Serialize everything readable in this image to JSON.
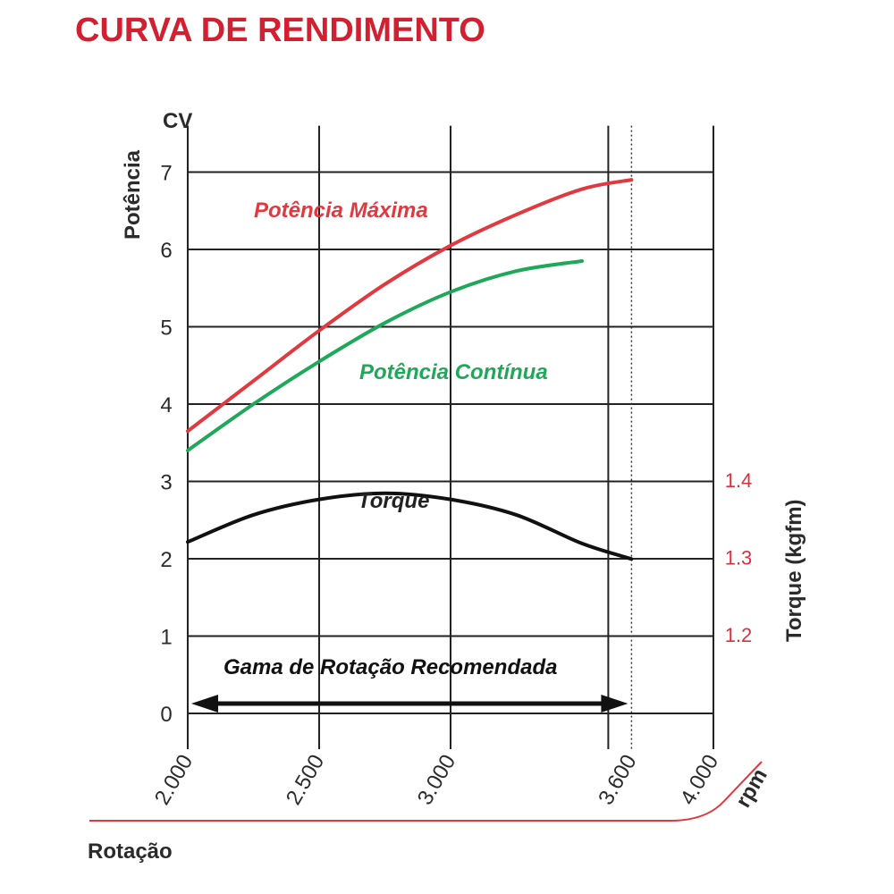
{
  "header": {
    "title": "CURVA DE RENDIMENTO"
  },
  "colors": {
    "title": "#d22030",
    "max_power": "#e0393f",
    "cont_power": "#1fa85a",
    "torque": "#111111",
    "torque_axis": "#d9303c",
    "grid": "#222222",
    "baseline": "#e0393f"
  },
  "chart_data": {
    "type": "line",
    "x_axis": {
      "label": "rpm",
      "caption": "Rotação",
      "ticks": [
        {
          "value": 2000,
          "label": "2.000"
        },
        {
          "value": 2500,
          "label": "2.500"
        },
        {
          "value": 3000,
          "label": "3.000"
        },
        {
          "value": 3600,
          "label": "3.600"
        },
        {
          "value": 4000,
          "label": "4.000"
        }
      ],
      "range": [
        2000,
        4000
      ]
    },
    "y_axis": {
      "label": "Potência",
      "unit": "CV",
      "ticks": [
        "0",
        "1",
        "2",
        "3",
        "4",
        "5",
        "6",
        "7"
      ],
      "range": [
        0,
        7.6
      ]
    },
    "y2_axis": {
      "label": "Torque (kgfm)",
      "ticks": [
        {
          "value": 1.2,
          "label": "1.2"
        },
        {
          "value": 1.3,
          "label": "1.3"
        },
        {
          "value": 1.4,
          "label": "1.4"
        }
      ]
    },
    "series": [
      {
        "name": "Potência Máxima",
        "axis": "left",
        "x": [
          2000,
          2250,
          2500,
          2750,
          3000,
          3250,
          3500,
          3600
        ],
        "y": [
          3.65,
          4.3,
          4.95,
          5.55,
          6.05,
          6.45,
          6.78,
          6.9
        ]
      },
      {
        "name": "Potência Contínua",
        "axis": "left",
        "x": [
          2000,
          2250,
          2500,
          2750,
          3000,
          3250,
          3500
        ],
        "y": [
          3.4,
          4.0,
          4.55,
          5.05,
          5.45,
          5.72,
          5.85
        ]
      },
      {
        "name": "Torque",
        "axis": "right",
        "x": [
          2000,
          2250,
          2500,
          2750,
          3000,
          3250,
          3500,
          3600
        ],
        "y": [
          1.32,
          1.355,
          1.375,
          1.383,
          1.375,
          1.355,
          1.318,
          1.298
        ]
      }
    ],
    "annotations": [
      {
        "text": "Gama de Rotação Recomendada",
        "x_range": [
          2000,
          3600
        ]
      }
    ],
    "grid": true
  }
}
